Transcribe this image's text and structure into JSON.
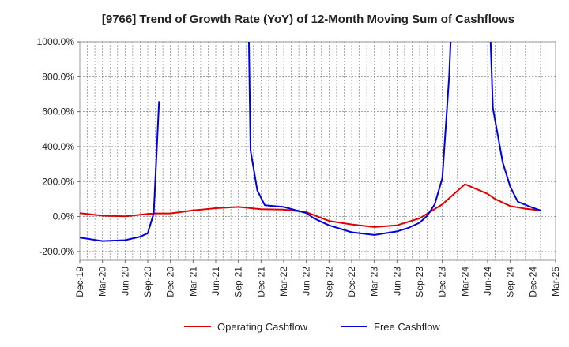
{
  "chart_data": {
    "type": "line",
    "title": "[9766]  Trend of Growth Rate (YoY) of 12-Month Moving Sum of Cashflows",
    "xlabel": "",
    "ylabel": "",
    "ylim": [
      -250,
      1000
    ],
    "yticks": [
      -200,
      0,
      200,
      400,
      600,
      800,
      1000
    ],
    "ytick_labels": [
      "-200.0%",
      "0.0%",
      "200.0%",
      "400.0%",
      "600.0%",
      "800.0%",
      "1000.0%"
    ],
    "xtick_labels": [
      "Dec-19",
      "Mar-20",
      "Jun-20",
      "Sep-20",
      "Dec-20",
      "Mar-21",
      "Jun-21",
      "Sep-21",
      "Dec-21",
      "Mar-22",
      "Jun-22",
      "Sep-22",
      "Dec-22",
      "Mar-23",
      "Jun-23",
      "Sep-23",
      "Dec-23",
      "Mar-24",
      "Jun-24",
      "Sep-24",
      "Dec-24",
      "Mar-25"
    ],
    "grid": true,
    "legend": "bottom",
    "series": [
      {
        "name": "Operating Cashflow",
        "color": "#e00000",
        "points": [
          [
            0,
            20
          ],
          [
            3,
            5
          ],
          [
            6,
            2
          ],
          [
            9,
            15
          ],
          [
            10,
            18
          ],
          [
            12,
            18
          ],
          [
            15,
            35
          ],
          [
            18,
            48
          ],
          [
            21,
            55
          ],
          [
            24,
            42
          ],
          [
            27,
            40
          ],
          [
            30,
            25
          ],
          [
            33,
            -25
          ],
          [
            36,
            -45
          ],
          [
            39,
            -60
          ],
          [
            42,
            -50
          ],
          [
            45,
            -10
          ],
          [
            48,
            70
          ],
          [
            51,
            185
          ],
          [
            54,
            130
          ],
          [
            55,
            100
          ],
          [
            57,
            60
          ],
          [
            59,
            45
          ],
          [
            61,
            35
          ]
        ]
      },
      {
        "name": "Free Cashflow",
        "color": "#0000e0",
        "points": [
          [
            0,
            -120
          ],
          [
            3,
            -140
          ],
          [
            6,
            -135
          ],
          [
            8,
            -115
          ],
          [
            9,
            -95
          ],
          [
            9.8,
            20
          ],
          [
            10.5,
            660
          ],
          [
            null,
            null
          ],
          [
            22.4,
            1000
          ],
          [
            22.6,
            380
          ],
          [
            23.5,
            150
          ],
          [
            24.5,
            65
          ],
          [
            27,
            55
          ],
          [
            30,
            20
          ],
          [
            31,
            -10
          ],
          [
            33,
            -50
          ],
          [
            36,
            -90
          ],
          [
            39,
            -105
          ],
          [
            42,
            -85
          ],
          [
            43.5,
            -65
          ],
          [
            45,
            -35
          ],
          [
            46,
            5
          ],
          [
            47,
            70
          ],
          [
            48,
            220
          ],
          [
            48.9,
            800
          ],
          [
            49.1,
            1000
          ],
          [
            null,
            null
          ],
          [
            54.4,
            1000
          ],
          [
            54.7,
            620
          ],
          [
            56,
            310
          ],
          [
            57,
            170
          ],
          [
            58,
            85
          ],
          [
            60,
            50
          ],
          [
            61,
            35
          ]
        ]
      }
    ]
  }
}
